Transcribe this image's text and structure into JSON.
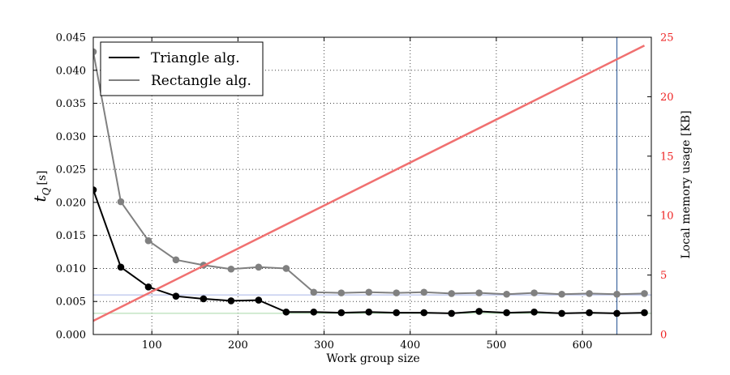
{
  "colors": {
    "triangle": "#000000",
    "rectangle": "#808080",
    "memory": "#f07070",
    "right_axis": "#ee2222",
    "vline": "#4a6fa5",
    "hline_blue": "#a8b4e8",
    "hline_green": "#a8d8a8",
    "grid": "#444444"
  },
  "chart_data": {
    "type": "line",
    "xlabel": "Work group size",
    "ylabel_main": "t",
    "ylabel_sub": "Q",
    "ylabel_unit": "[s]",
    "y2label": "Local memory usage [KB]",
    "xlim": [
      32,
      680
    ],
    "ylim": [
      0,
      0.045
    ],
    "y2lim": [
      0,
      25
    ],
    "x_ticks": [
      100,
      200,
      300,
      400,
      500,
      600
    ],
    "y_ticks": [
      0.0,
      0.005,
      0.01,
      0.015,
      0.02,
      0.025,
      0.03,
      0.035,
      0.04,
      0.045
    ],
    "y_tick_labels": [
      "0.000",
      "0.005",
      "0.010",
      "0.015",
      "0.020",
      "0.025",
      "0.030",
      "0.035",
      "0.040",
      "0.045"
    ],
    "y2_ticks": [
      0,
      5,
      10,
      15,
      20,
      25
    ],
    "grid": true,
    "legend_position": "top-left",
    "x": [
      32,
      64,
      96,
      128,
      160,
      192,
      224,
      256,
      288,
      320,
      352,
      384,
      416,
      448,
      480,
      512,
      544,
      576,
      608,
      640,
      672
    ],
    "series": [
      {
        "name": "Triangle alg.",
        "values": [
          0.0219,
          0.0102,
          0.0072,
          0.0058,
          0.0054,
          0.0051,
          0.0052,
          0.0034,
          0.0034,
          0.0033,
          0.0034,
          0.0033,
          0.0033,
          0.0032,
          0.0035,
          0.0033,
          0.0034,
          0.0032,
          0.0033,
          0.0032,
          0.0033
        ]
      },
      {
        "name": "Rectangle alg.",
        "values": [
          0.0428,
          0.0201,
          0.0142,
          0.0113,
          0.0105,
          0.0099,
          0.0102,
          0.01,
          0.0064,
          0.0063,
          0.0064,
          0.0063,
          0.0064,
          0.0062,
          0.0063,
          0.0061,
          0.0063,
          0.0061,
          0.0062,
          0.0061,
          0.0062
        ]
      }
    ],
    "memory_line": {
      "x": [
        32,
        672
      ],
      "values": [
        1.15,
        24.3
      ]
    },
    "reference_lines": {
      "vertical_x": 640,
      "horizontal_blue_y": 0.006,
      "horizontal_green_y": 0.0032
    }
  }
}
